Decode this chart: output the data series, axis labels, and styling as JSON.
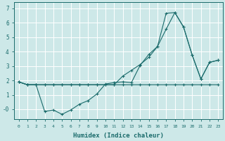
{
  "xlabel": "Humidex (Indice chaleur)",
  "background_color": "#cde8e8",
  "grid_color": "#ffffff",
  "line_color": "#1a6b6b",
  "xlim": [
    -0.5,
    23.5
  ],
  "ylim": [
    -0.7,
    7.4
  ],
  "xticks": [
    0,
    1,
    2,
    3,
    4,
    5,
    6,
    7,
    8,
    9,
    10,
    11,
    12,
    13,
    14,
    15,
    16,
    17,
    18,
    19,
    20,
    21,
    22,
    23
  ],
  "yticks": [
    0,
    1,
    2,
    3,
    4,
    5,
    6,
    7
  ],
  "ytick_labels": [
    "-0",
    "1",
    "2",
    "3",
    "4",
    "5",
    "6",
    "7"
  ],
  "line1_x": [
    0,
    1,
    2,
    3,
    4,
    5,
    6,
    7,
    8,
    9,
    10,
    11,
    12,
    13,
    14,
    15,
    16,
    17,
    18,
    19,
    20,
    21,
    22,
    23
  ],
  "line1_y": [
    1.9,
    1.7,
    1.7,
    1.7,
    1.7,
    1.7,
    1.7,
    1.7,
    1.7,
    1.7,
    1.7,
    1.7,
    1.7,
    1.7,
    1.7,
    1.7,
    1.7,
    1.7,
    1.7,
    1.7,
    1.7,
    1.7,
    1.7,
    1.7
  ],
  "line2_x": [
    0,
    1,
    2,
    3,
    4,
    5,
    6,
    7,
    8,
    9,
    10,
    11,
    12,
    13,
    14,
    15,
    16,
    17,
    18,
    19,
    20,
    21,
    22,
    23
  ],
  "line2_y": [
    1.9,
    1.7,
    1.7,
    -0.15,
    -0.05,
    -0.35,
    -0.05,
    0.35,
    0.6,
    1.05,
    1.75,
    1.85,
    1.9,
    1.85,
    3.05,
    3.8,
    4.35,
    5.55,
    6.7,
    5.7,
    3.75,
    2.1,
    3.25,
    3.4
  ],
  "line3_x": [
    0,
    1,
    2,
    3,
    4,
    5,
    6,
    7,
    8,
    9,
    10,
    11,
    12,
    13,
    14,
    15,
    16,
    17,
    18,
    19,
    20,
    21,
    22,
    23
  ],
  "line3_y": [
    1.9,
    1.7,
    1.7,
    1.7,
    1.7,
    1.7,
    1.7,
    1.7,
    1.7,
    1.7,
    1.7,
    1.7,
    2.3,
    2.7,
    3.1,
    3.6,
    4.35,
    6.65,
    6.7,
    5.7,
    3.75,
    2.1,
    3.25,
    3.4
  ]
}
